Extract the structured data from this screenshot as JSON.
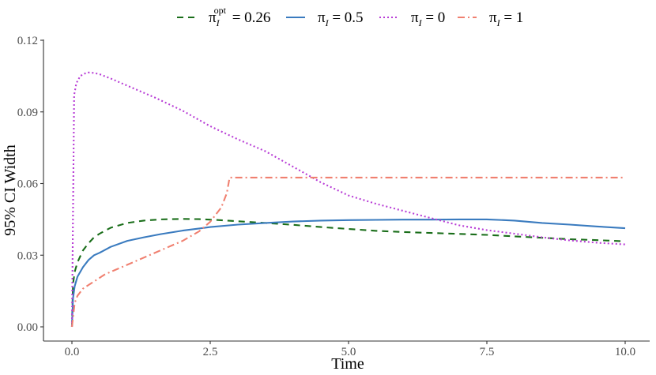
{
  "chart_data": {
    "type": "line",
    "xlabel": "Time",
    "ylabel": "95% CI Width",
    "xlim": [
      0,
      10
    ],
    "ylim": [
      0,
      0.12
    ],
    "x_ticks": [
      0,
      2.5,
      5,
      7.5,
      10
    ],
    "x_tick_labels": [
      "0.0",
      "2.5",
      "5.0",
      "7.5",
      "10.0"
    ],
    "y_ticks": [
      0,
      0.03,
      0.06,
      0.09,
      0.12
    ],
    "y_tick_labels": [
      "0.00",
      "0.03",
      "0.06",
      "0.09",
      "0.12"
    ],
    "grid": false,
    "legend_position": "top",
    "series": [
      {
        "name": "π_I^opt = 0.26",
        "legend": {
          "pi": "π",
          "sub": "I",
          "sup": "opt",
          "value": "= 0.26"
        },
        "color": "#1a6e1a",
        "dash": "8,6",
        "x": [
          0.0,
          0.02,
          0.05,
          0.1,
          0.2,
          0.3,
          0.4,
          0.5,
          0.7,
          1.0,
          1.3,
          1.6,
          2.0,
          2.3,
          2.6,
          3.0,
          3.5,
          4.0,
          4.5,
          5.0,
          5.5,
          6.0,
          6.5,
          7.0,
          7.5,
          8.0,
          8.5,
          9.0,
          9.5,
          10.0
        ],
        "y": [
          0.0,
          0.018,
          0.023,
          0.027,
          0.032,
          0.035,
          0.0375,
          0.039,
          0.0415,
          0.0435,
          0.0445,
          0.045,
          0.0452,
          0.0451,
          0.0448,
          0.0442,
          0.0435,
          0.0427,
          0.0418,
          0.041,
          0.0402,
          0.0397,
          0.0393,
          0.0389,
          0.0385,
          0.0379,
          0.0373,
          0.0367,
          0.0363,
          0.0358
        ]
      },
      {
        "name": "π_I = 0.5",
        "legend": {
          "pi": "π",
          "sub": "I",
          "sup": "",
          "value": "= 0.5"
        },
        "color": "#3a7bbf",
        "dash": "",
        "x": [
          0.0,
          0.02,
          0.05,
          0.1,
          0.2,
          0.3,
          0.4,
          0.5,
          0.7,
          1.0,
          1.3,
          1.6,
          2.0,
          2.5,
          3.0,
          3.5,
          4.0,
          4.5,
          5.0,
          5.5,
          6.0,
          6.5,
          7.0,
          7.5,
          8.0,
          8.5,
          9.0,
          9.5,
          10.0
        ],
        "y": [
          0.0,
          0.012,
          0.017,
          0.021,
          0.025,
          0.028,
          0.03,
          0.031,
          0.0335,
          0.036,
          0.0375,
          0.0388,
          0.0403,
          0.0418,
          0.0428,
          0.0435,
          0.0441,
          0.0445,
          0.0447,
          0.0448,
          0.0449,
          0.0449,
          0.045,
          0.045,
          0.0445,
          0.0435,
          0.0428,
          0.042,
          0.0413
        ]
      },
      {
        "name": "π_I = 0",
        "legend": {
          "pi": "π",
          "sub": "I",
          "sup": "",
          "value": "= 0"
        },
        "color": "#b83dd6",
        "dash": "2,3",
        "x": [
          0.0,
          0.04,
          0.08,
          0.15,
          0.22,
          0.3,
          0.4,
          0.5,
          0.7,
          1.0,
          1.5,
          2.0,
          2.5,
          3.0,
          3.5,
          4.0,
          4.5,
          5.0,
          5.5,
          6.0,
          6.5,
          7.0,
          7.5,
          8.0,
          8.5,
          9.0,
          9.5,
          10.0
        ],
        "y": [
          0.0,
          0.097,
          0.102,
          0.105,
          0.106,
          0.1065,
          0.1063,
          0.1058,
          0.104,
          0.101,
          0.096,
          0.0905,
          0.084,
          0.0785,
          0.0735,
          0.067,
          0.0605,
          0.055,
          0.0515,
          0.0485,
          0.0455,
          0.0425,
          0.0405,
          0.039,
          0.0375,
          0.0362,
          0.0352,
          0.0345
        ]
      },
      {
        "name": "π_I = 1",
        "legend": {
          "pi": "π",
          "sub": "I",
          "sup": "",
          "value": "= 1"
        },
        "color": "#f08070",
        "dash": "9,4,2,4",
        "x": [
          0.0,
          0.05,
          0.1,
          0.2,
          0.4,
          0.6,
          0.8,
          1.0,
          1.3,
          1.6,
          2.0,
          2.3,
          2.5,
          2.7,
          2.8,
          2.85,
          3.0,
          4.0,
          5.0,
          6.0,
          7.0,
          8.0,
          9.0,
          10.0
        ],
        "y": [
          0.0,
          0.01,
          0.013,
          0.016,
          0.019,
          0.022,
          0.024,
          0.026,
          0.029,
          0.032,
          0.036,
          0.04,
          0.044,
          0.05,
          0.056,
          0.0625,
          0.0625,
          0.0625,
          0.0625,
          0.0625,
          0.0625,
          0.0625,
          0.0625,
          0.0625
        ]
      }
    ]
  }
}
